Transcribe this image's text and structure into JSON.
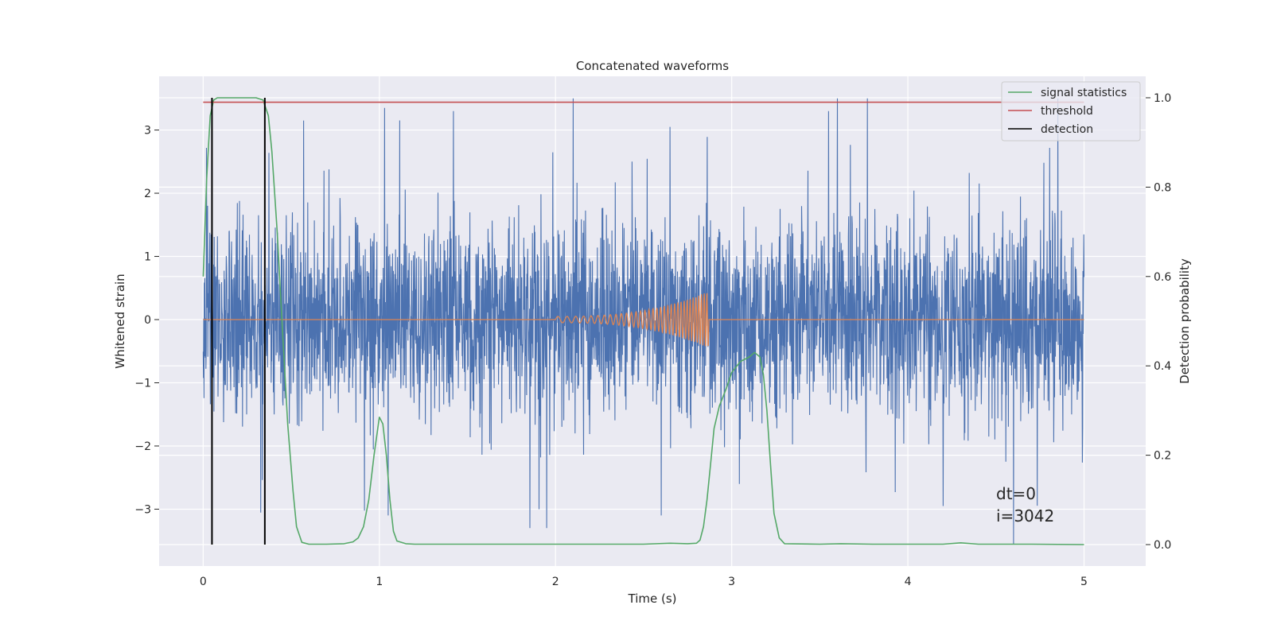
{
  "chart_data": {
    "type": "line",
    "title": "Concatenated waveforms",
    "xlabel": "Time (s)",
    "ylabel": "Whitened strain",
    "y2label": "Detection probability",
    "xlim": [
      -0.25,
      5.35
    ],
    "ylim": [
      -3.9,
      3.85
    ],
    "y2lim": [
      -0.048,
      1.048
    ],
    "xticks": [
      0,
      1,
      2,
      3,
      4,
      5
    ],
    "yticks": [
      -3,
      -2,
      -1,
      0,
      1,
      2,
      3
    ],
    "y2ticks": [
      0.0,
      0.2,
      0.4,
      0.6,
      0.8,
      1.0
    ],
    "xtick_labels": [
      "0",
      "1",
      "2",
      "3",
      "4",
      "5"
    ],
    "ytick_labels": [
      "−3",
      "−2",
      "−1",
      "0",
      "1",
      "2",
      "3"
    ],
    "y2tick_labels": [
      "0.0",
      "0.2",
      "0.4",
      "0.6",
      "0.8",
      "1.0"
    ],
    "grid": true,
    "legend_placement": "top-right",
    "colors": {
      "background": "#eaeaf2",
      "grid": "#ffffff",
      "noise": "#4c72b0",
      "waveform": "#dd8452",
      "signal_statistics": "#55a868",
      "threshold": "#c44e52",
      "detection": "#000000"
    },
    "series": [
      {
        "name": "",
        "axis": "left",
        "kind": "noise",
        "x_range": [
          0,
          5
        ],
        "amplitude_sd": 0.75,
        "extreme_range": [
          -3.3,
          3.5
        ],
        "notable_spikes": [
          {
            "x": 0.57,
            "y": 3.15
          },
          {
            "x": 1.03,
            "y": 3.35
          },
          {
            "x": 1.42,
            "y": 3.3
          },
          {
            "x": 2.65,
            "y": 3.05
          },
          {
            "x": 3.55,
            "y": 3.3
          },
          {
            "x": 3.6,
            "y": 3.5
          },
          {
            "x": 3.77,
            "y": 3.5
          },
          {
            "x": 1.95,
            "y": -3.3
          },
          {
            "x": 2.6,
            "y": -3.1
          },
          {
            "x": 1.05,
            "y": -3.1
          },
          {
            "x": 4.6,
            "y": -3.55
          },
          {
            "x": 4.2,
            "y": -2.95
          }
        ]
      },
      {
        "name": "",
        "axis": "left",
        "kind": "chirp",
        "x_range": [
          0,
          5
        ],
        "chirp_start": 2.0,
        "chirp_end": 2.87,
        "peak_amplitude": 0.45
      },
      {
        "name": "signal statistics",
        "axis": "right",
        "x": [
          0.0,
          0.02,
          0.04,
          0.06,
          0.08,
          0.1,
          0.15,
          0.2,
          0.25,
          0.3,
          0.34,
          0.37,
          0.39,
          0.42,
          0.45,
          0.48,
          0.51,
          0.53,
          0.56,
          0.6,
          0.7,
          0.8,
          0.85,
          0.88,
          0.91,
          0.94,
          0.97,
          1.0,
          1.02,
          1.04,
          1.06,
          1.08,
          1.1,
          1.15,
          1.2,
          1.5,
          2.0,
          2.5,
          2.65,
          2.75,
          2.8,
          2.82,
          2.84,
          2.86,
          2.88,
          2.9,
          2.93,
          2.97,
          3.0,
          3.05,
          3.1,
          3.13,
          3.16,
          3.18,
          3.2,
          3.22,
          3.24,
          3.27,
          3.3,
          3.5,
          3.62,
          3.8,
          4.2,
          4.3,
          4.4,
          4.7,
          5.0
        ],
        "values": [
          0.6,
          0.82,
          0.96,
          0.995,
          1.0,
          1.0,
          1.0,
          1.0,
          1.0,
          1.0,
          0.995,
          0.96,
          0.88,
          0.7,
          0.48,
          0.27,
          0.12,
          0.04,
          0.005,
          0.001,
          0.001,
          0.002,
          0.006,
          0.015,
          0.04,
          0.1,
          0.2,
          0.285,
          0.27,
          0.2,
          0.1,
          0.03,
          0.008,
          0.002,
          0.001,
          0.001,
          0.001,
          0.001,
          0.003,
          0.002,
          0.003,
          0.01,
          0.04,
          0.1,
          0.18,
          0.26,
          0.31,
          0.35,
          0.385,
          0.41,
          0.42,
          0.43,
          0.42,
          0.38,
          0.3,
          0.18,
          0.07,
          0.015,
          0.002,
          0.001,
          0.002,
          0.001,
          0.001,
          0.004,
          0.001,
          0.001,
          0.0
        ]
      },
      {
        "name": "threshold",
        "axis": "right",
        "x": [
          0,
          5
        ],
        "values": [
          0.99,
          0.99
        ]
      },
      {
        "name": "detection",
        "axis": "right",
        "kind": "vertical_lines",
        "x": [
          0.05,
          0.35
        ],
        "values": [
          0.0,
          1.0
        ]
      }
    ],
    "annotations": [
      "dt=0",
      "i=3042"
    ]
  }
}
